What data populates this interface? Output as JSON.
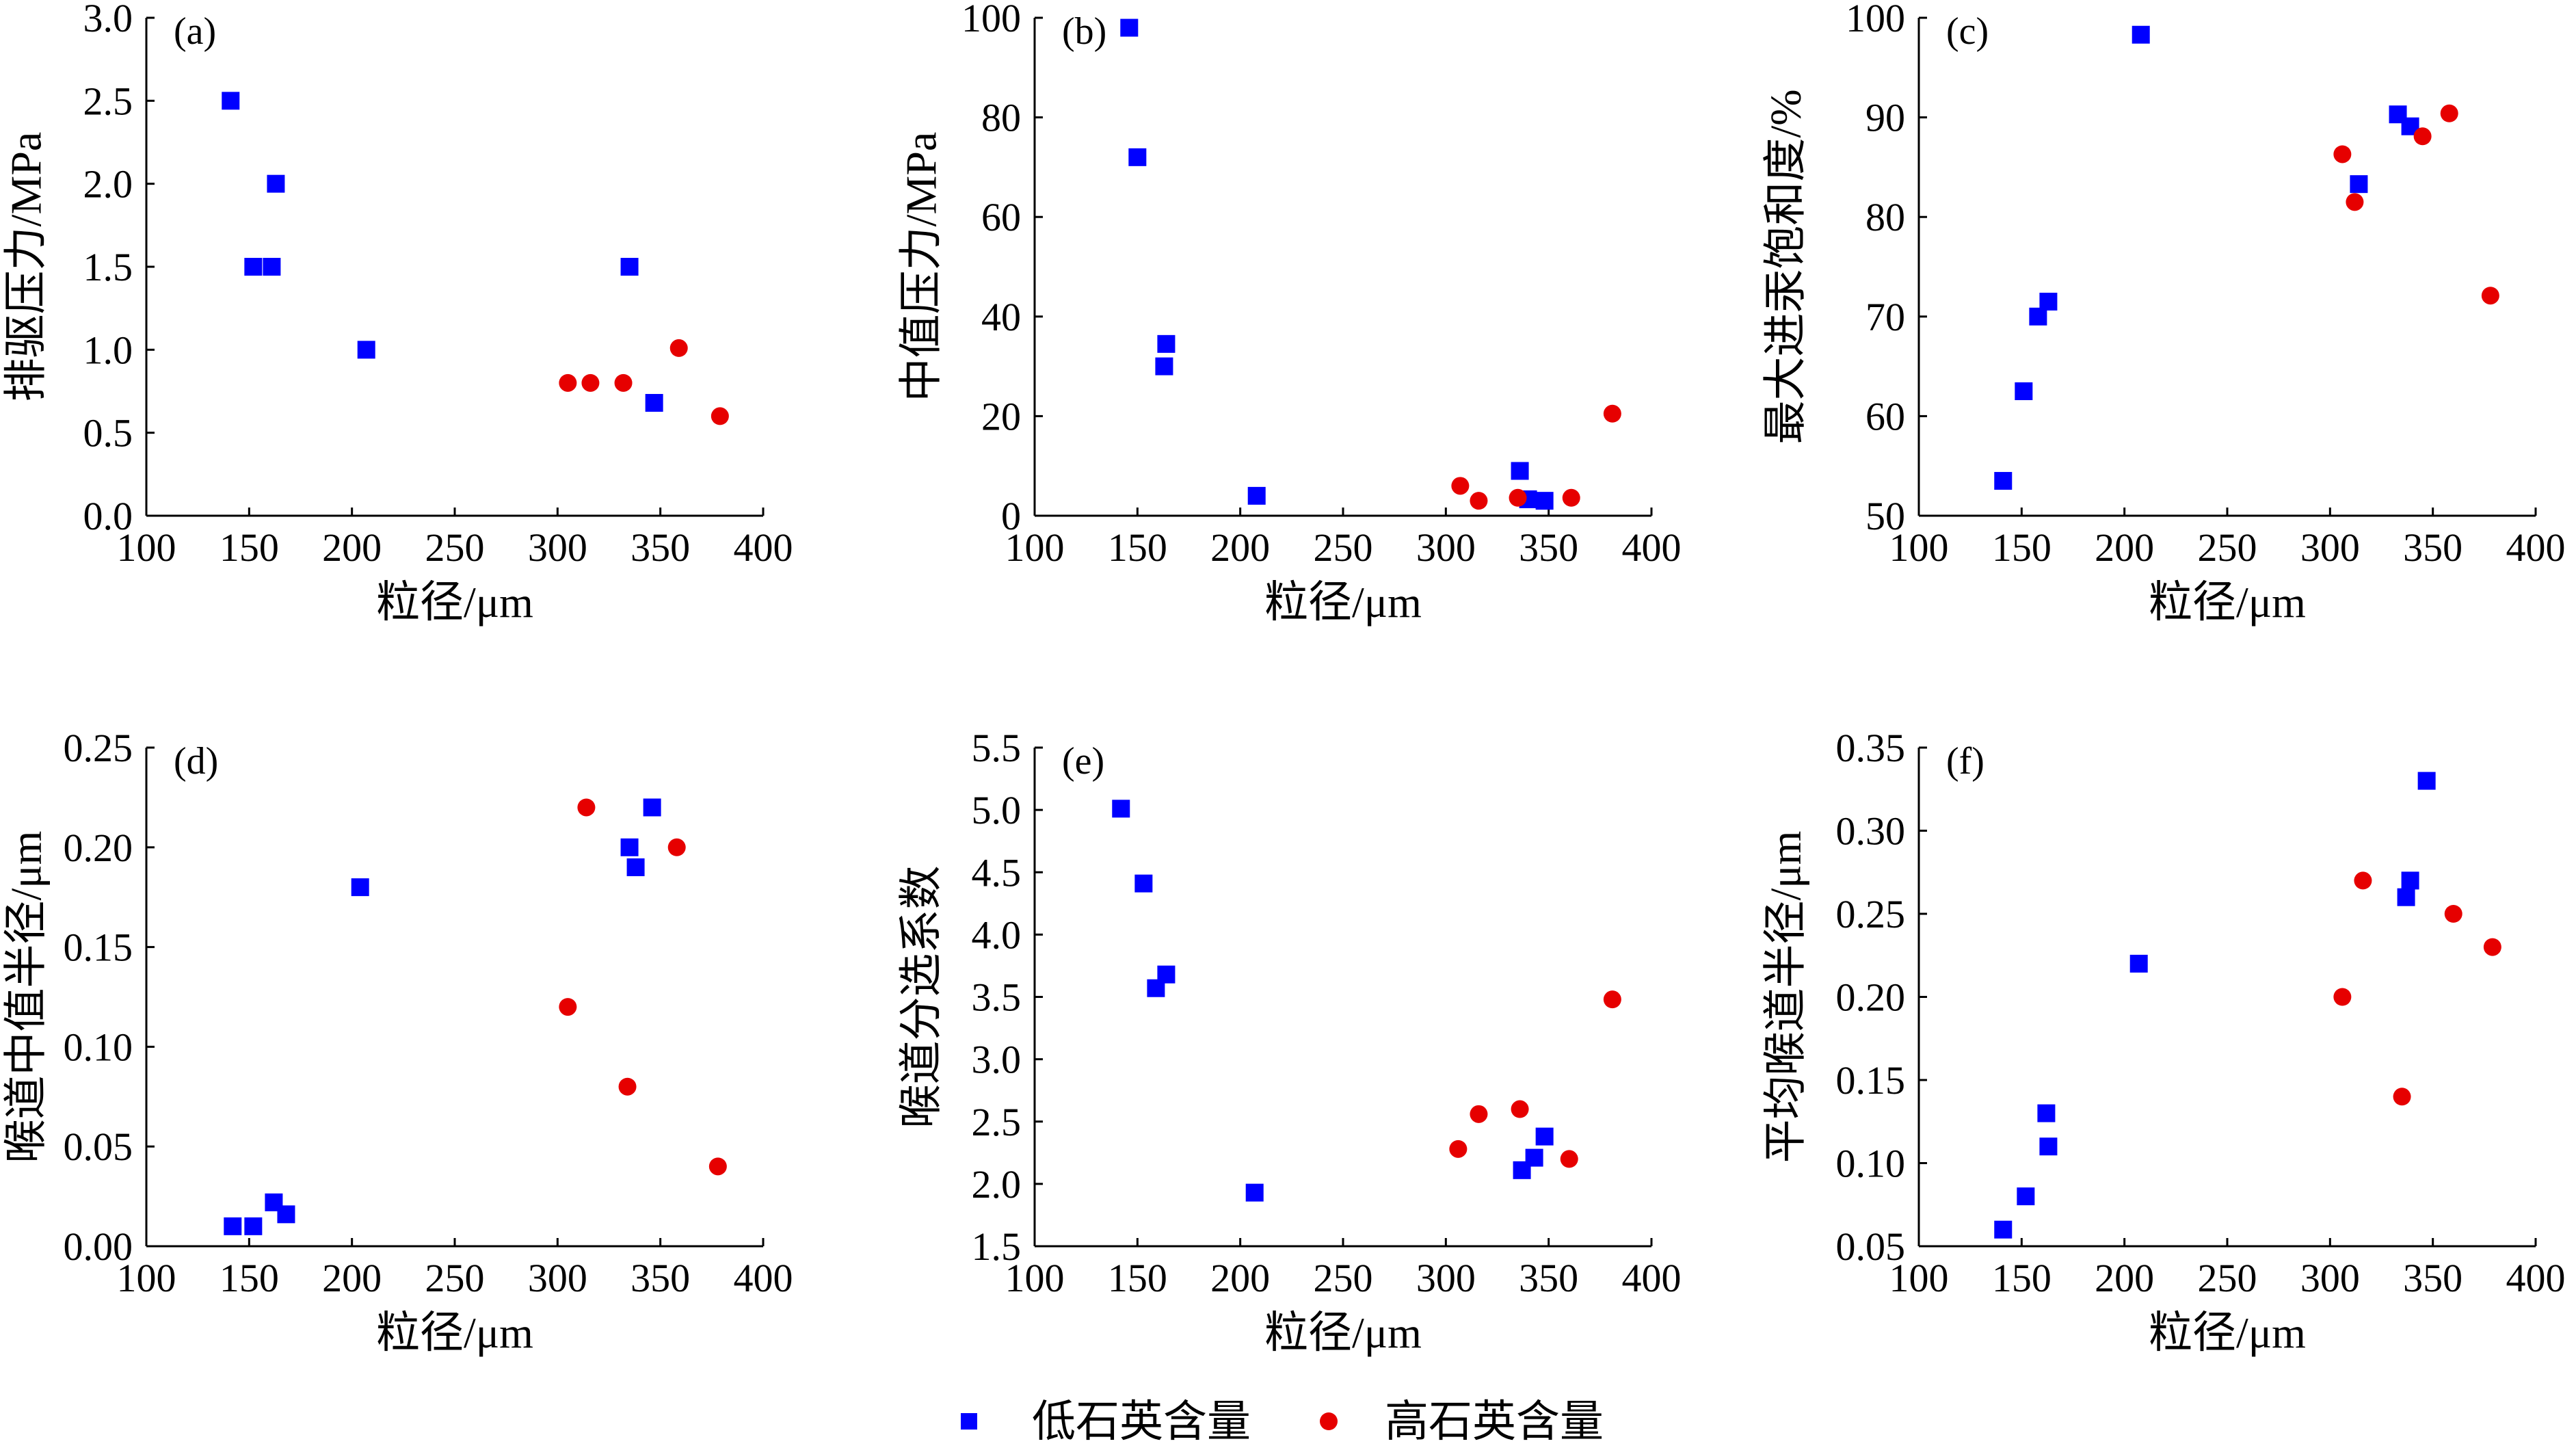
{
  "legend": {
    "position": "bottom",
    "items": [
      {
        "label": "低石英含量",
        "color": "#0000ff",
        "marker": "square"
      },
      {
        "label": "高石英含量",
        "color": "#e60000",
        "marker": "circle"
      }
    ]
  },
  "chart_data": [
    {
      "panel_label": "(a)",
      "type": "scatter",
      "xlabel": "粒径/μm",
      "ylabel": "排驱压力/MPa",
      "xlim": [
        100,
        400
      ],
      "ylim": [
        0,
        3
      ],
      "xticks": [
        "100",
        "150",
        "200",
        "250",
        "300",
        "350",
        "400"
      ],
      "yticks": [
        "0.0",
        "0.5",
        "1.0",
        "1.5",
        "2.0",
        "2.5",
        "3.0"
      ],
      "grid": false,
      "series": [
        {
          "name": "低石英含量",
          "color": "#0000ff",
          "marker": "square",
          "points": [
            [
              141,
              2.5
            ],
            [
              152,
              1.5
            ],
            [
              161,
              1.5
            ],
            [
              163,
              2.0
            ],
            [
              207,
              1.0
            ],
            [
              335,
              1.5
            ],
            [
              347,
              0.68
            ]
          ]
        },
        {
          "name": "高石英含量",
          "color": "#e60000",
          "marker": "circle",
          "points": [
            [
              305,
              0.8
            ],
            [
              316,
              0.8
            ],
            [
              332,
              0.8
            ],
            [
              359,
              1.01
            ],
            [
              379,
              0.6
            ]
          ]
        }
      ]
    },
    {
      "panel_label": "(b)",
      "type": "scatter",
      "xlabel": "粒径/μm",
      "ylabel": "中值压力/MPa",
      "xlim": [
        100,
        400
      ],
      "ylim": [
        0,
        100
      ],
      "xticks": [
        "100",
        "150",
        "200",
        "250",
        "300",
        "350",
        "400"
      ],
      "yticks": [
        "0",
        "20",
        "40",
        "60",
        "80",
        "100"
      ],
      "grid": false,
      "series": [
        {
          "name": "低石英含量",
          "color": "#0000ff",
          "marker": "square",
          "points": [
            [
              146,
              98
            ],
            [
              150,
              72
            ],
            [
              164,
              34.5
            ],
            [
              163,
              30
            ],
            [
              208,
              4
            ],
            [
              336,
              9
            ],
            [
              340,
              3.3
            ],
            [
              348,
              3
            ]
          ]
        },
        {
          "name": "高石英含量",
          "color": "#e60000",
          "marker": "circle",
          "points": [
            [
              307,
              6
            ],
            [
              316,
              3
            ],
            [
              335,
              3.6
            ],
            [
              361,
              3.6
            ],
            [
              381,
              20.5
            ]
          ]
        }
      ]
    },
    {
      "panel_label": "(c)",
      "type": "scatter",
      "xlabel": "粒径/μm",
      "ylabel": "最大进汞饱和度/%",
      "xlim": [
        100,
        400
      ],
      "ylim": [
        50,
        100
      ],
      "xticks": [
        "100",
        "150",
        "200",
        "250",
        "300",
        "350",
        "400"
      ],
      "yticks": [
        "50",
        "60",
        "70",
        "80",
        "90",
        "100"
      ],
      "grid": false,
      "series": [
        {
          "name": "低石英含量",
          "color": "#0000ff",
          "marker": "square",
          "points": [
            [
              141,
              53.5
            ],
            [
              151,
              62.5
            ],
            [
              158,
              70
            ],
            [
              163,
              71.5
            ],
            [
              208,
              98.3
            ],
            [
              314,
              83.3
            ],
            [
              333,
              90.3
            ],
            [
              339,
              89.1
            ]
          ]
        },
        {
          "name": "高石英含量",
          "color": "#e60000",
          "marker": "circle",
          "points": [
            [
              306,
              86.3
            ],
            [
              312,
              81.5
            ],
            [
              345,
              88.1
            ],
            [
              358,
              90.4
            ],
            [
              378,
              72.1
            ]
          ]
        }
      ]
    },
    {
      "panel_label": "(d)",
      "type": "scatter",
      "xlabel": "粒径/μm",
      "ylabel": "喉道中值半径/μm",
      "xlim": [
        100,
        400
      ],
      "ylim": [
        0,
        0.25
      ],
      "xticks": [
        "100",
        "150",
        "200",
        "250",
        "300",
        "350",
        "400"
      ],
      "yticks": [
        "0.00",
        "0.05",
        "0.10",
        "0.15",
        "0.20",
        "0.25"
      ],
      "grid": false,
      "series": [
        {
          "name": "低石英含量",
          "color": "#0000ff",
          "marker": "square",
          "points": [
            [
              142,
              0.01
            ],
            [
              152,
              0.01
            ],
            [
              162,
              0.022
            ],
            [
              168,
              0.016
            ],
            [
              204,
              0.18
            ],
            [
              335,
              0.2
            ],
            [
              338,
              0.19
            ],
            [
              346,
              0.22
            ]
          ]
        },
        {
          "name": "高石英含量",
          "color": "#e60000",
          "marker": "circle",
          "points": [
            [
              305,
              0.12
            ],
            [
              314,
              0.22
            ],
            [
              334,
              0.08
            ],
            [
              358,
              0.2
            ],
            [
              378,
              0.04
            ]
          ]
        }
      ]
    },
    {
      "panel_label": "(e)",
      "type": "scatter",
      "xlabel": "粒径/μm",
      "ylabel": "喉道分选系数",
      "xlim": [
        100,
        400
      ],
      "ylim": [
        1.5,
        5.5
      ],
      "xticks": [
        "100",
        "150",
        "200",
        "250",
        "300",
        "350",
        "400"
      ],
      "yticks": [
        "1.5",
        "2.0",
        "2.5",
        "3.0",
        "3.5",
        "4.0",
        "4.5",
        "5.0",
        "5.5"
      ],
      "grid": false,
      "series": [
        {
          "name": "低石英含量",
          "color": "#0000ff",
          "marker": "square",
          "points": [
            [
              142,
              5.01
            ],
            [
              153,
              4.41
            ],
            [
              159,
              3.57
            ],
            [
              164,
              3.68
            ],
            [
              207,
              1.93
            ],
            [
              337,
              2.11
            ],
            [
              343,
              2.21
            ],
            [
              348,
              2.38
            ]
          ]
        },
        {
          "name": "高石英含量",
          "color": "#e60000",
          "marker": "circle",
          "points": [
            [
              306,
              2.28
            ],
            [
              316,
              2.56
            ],
            [
              336,
              2.6
            ],
            [
              360,
              2.2
            ],
            [
              381,
              3.48
            ]
          ]
        }
      ]
    },
    {
      "panel_label": "(f)",
      "type": "scatter",
      "xlabel": "粒径/μm",
      "ylabel": "平均喉道半径/μm",
      "xlim": [
        100,
        400
      ],
      "ylim": [
        0.05,
        0.35
      ],
      "xticks": [
        "100",
        "150",
        "200",
        "250",
        "300",
        "350",
        "400"
      ],
      "yticks": [
        "0.05",
        "0.10",
        "0.15",
        "0.20",
        "0.25",
        "0.30",
        "0.35"
      ],
      "grid": false,
      "series": [
        {
          "name": "低石英含量",
          "color": "#0000ff",
          "marker": "square",
          "points": [
            [
              141,
              0.06
            ],
            [
              152,
              0.08
            ],
            [
              162,
              0.13
            ],
            [
              163,
              0.11
            ],
            [
              207,
              0.22
            ],
            [
              337,
              0.26
            ],
            [
              339,
              0.27
            ],
            [
              347,
              0.33
            ]
          ]
        },
        {
          "name": "高石英含量",
          "color": "#e60000",
          "marker": "circle",
          "points": [
            [
              306,
              0.2
            ],
            [
              316,
              0.27
            ],
            [
              335,
              0.14
            ],
            [
              360,
              0.25
            ],
            [
              379,
              0.23
            ]
          ]
        }
      ]
    }
  ]
}
